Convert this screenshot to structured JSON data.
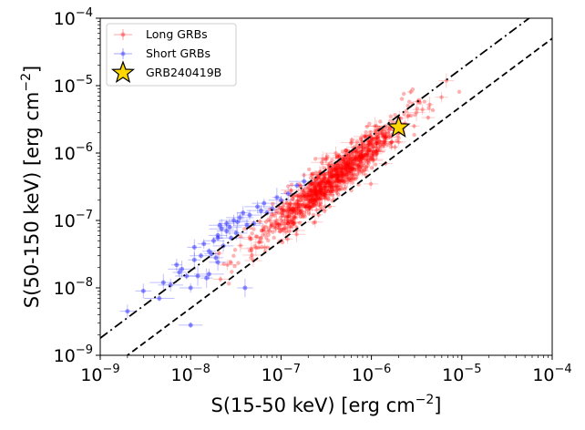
{
  "chart_data": {
    "type": "scatter",
    "xscale": "log",
    "yscale": "log",
    "xlim": [
      1e-09,
      0.0001
    ],
    "ylim": [
      1e-09,
      0.0001
    ],
    "xlabel": "S(15-50 keV) [erg cm",
    "xlabel_exp": "−2",
    "xlabel_end": "]",
    "ylabel": "S(50-150 keV) [erg cm",
    "ylabel_exp": "−2",
    "ylabel_end": "]",
    "ticks": [
      {
        "value": 1e-09,
        "base": "10",
        "exp": "−9"
      },
      {
        "value": 1e-08,
        "base": "10",
        "exp": "−8"
      },
      {
        "value": 1e-07,
        "base": "10",
        "exp": "−7"
      },
      {
        "value": 1e-06,
        "base": "10",
        "exp": "−6"
      },
      {
        "value": 1e-05,
        "base": "10",
        "exp": "−5"
      },
      {
        "value": 0.0001,
        "base": "10",
        "exp": "−4"
      }
    ],
    "legend_position": "top-left",
    "series": [
      {
        "name": "Long GRBs",
        "color": "#ff0000",
        "marker": "circle",
        "n_points": 1150,
        "log_x_range": [
          -7.8,
          -5.0
        ],
        "ratio_model": "log10(y) = log10(x) + 0.05 + 0.08*(log10(x)+6.5)",
        "ratio_scatter_dex": 0.15,
        "x_center": 3e-07
      },
      {
        "name": "Short GRBs",
        "color": "#0000ff",
        "marker": "circle",
        "points": [
          [
            2e-09,
            4.5e-09
          ],
          [
            4.5e-09,
            7e-09
          ],
          [
            5e-09,
            1.2e-08
          ],
          [
            6e-09,
            1.1e-08
          ],
          [
            7e-09,
            2.2e-08
          ],
          [
            8e-09,
            1.9e-08
          ],
          [
            9e-09,
            1.5e-08
          ],
          [
            1e-08,
            2.8e-09
          ],
          [
            1.1e-08,
            4e-08
          ],
          [
            1.2e-08,
            1.5e-08
          ],
          [
            1.3e-08,
            3e-08
          ],
          [
            1.4e-08,
            4.5e-08
          ],
          [
            1.5e-08,
            1.4e-08
          ],
          [
            1.6e-08,
            1.6e-08
          ],
          [
            1.7e-08,
            3.2e-08
          ],
          [
            1.8e-08,
            5e-08
          ],
          [
            2e-08,
            6e-08
          ],
          [
            2e-08,
            2.4e-08
          ],
          [
            2.2e-08,
            7.5e-08
          ],
          [
            2.3e-08,
            4.2e-08
          ],
          [
            2.5e-08,
            9e-08
          ],
          [
            2.7e-08,
            8e-08
          ],
          [
            3e-08,
            1e-07
          ],
          [
            3.2e-08,
            6.5e-08
          ],
          [
            3.5e-08,
            1.1e-07
          ],
          [
            4e-08,
            1e-08
          ],
          [
            4.5e-08,
            1.2e-07
          ],
          [
            5e-08,
            9e-08
          ],
          [
            6e-08,
            1.4e-07
          ],
          [
            7e-08,
            1.3e-07
          ],
          [
            8e-08,
            1.5e-07
          ],
          [
            9e-08,
            2.2e-07
          ],
          [
            1e-07,
            2e-07
          ],
          [
            1.2e-07,
            2.5e-07
          ],
          [
            1.5e-07,
            3.3e-07
          ],
          [
            1.8e-07,
            3.8e-07
          ],
          [
            2e-08,
            5.5e-08
          ],
          [
            2.5e-08,
            7e-08
          ],
          [
            3.8e-08,
            1.3e-07
          ],
          [
            1.6e-08,
            3.5e-08
          ],
          [
            7.5e-09,
            1.7e-08
          ],
          [
            1.9e-08,
            2.8e-08
          ],
          [
            2.8e-08,
            5.5e-08
          ],
          [
            4.2e-08,
            8.5e-08
          ],
          [
            6.5e-08,
            1.8e-07
          ],
          [
            1.1e-08,
            2.6e-08
          ],
          [
            2.1e-08,
            8.5e-08
          ],
          [
            3.3e-08,
            9.5e-08
          ],
          [
            5.5e-08,
            1.6e-07
          ],
          [
            3e-09,
            9e-09
          ],
          [
            1e-08,
            1e-08
          ]
        ]
      },
      {
        "name": "GRB240419B",
        "color": "#ffd700",
        "marker": "star",
        "points": [
          [
            2e-06,
            2.4e-06
          ]
        ]
      }
    ],
    "lines": [
      {
        "style": "dash-dot",
        "relation": "y = 1.8 * x",
        "color": "#000000"
      },
      {
        "style": "dashed",
        "relation": "y = 0.5 * x",
        "color": "#000000"
      }
    ]
  }
}
